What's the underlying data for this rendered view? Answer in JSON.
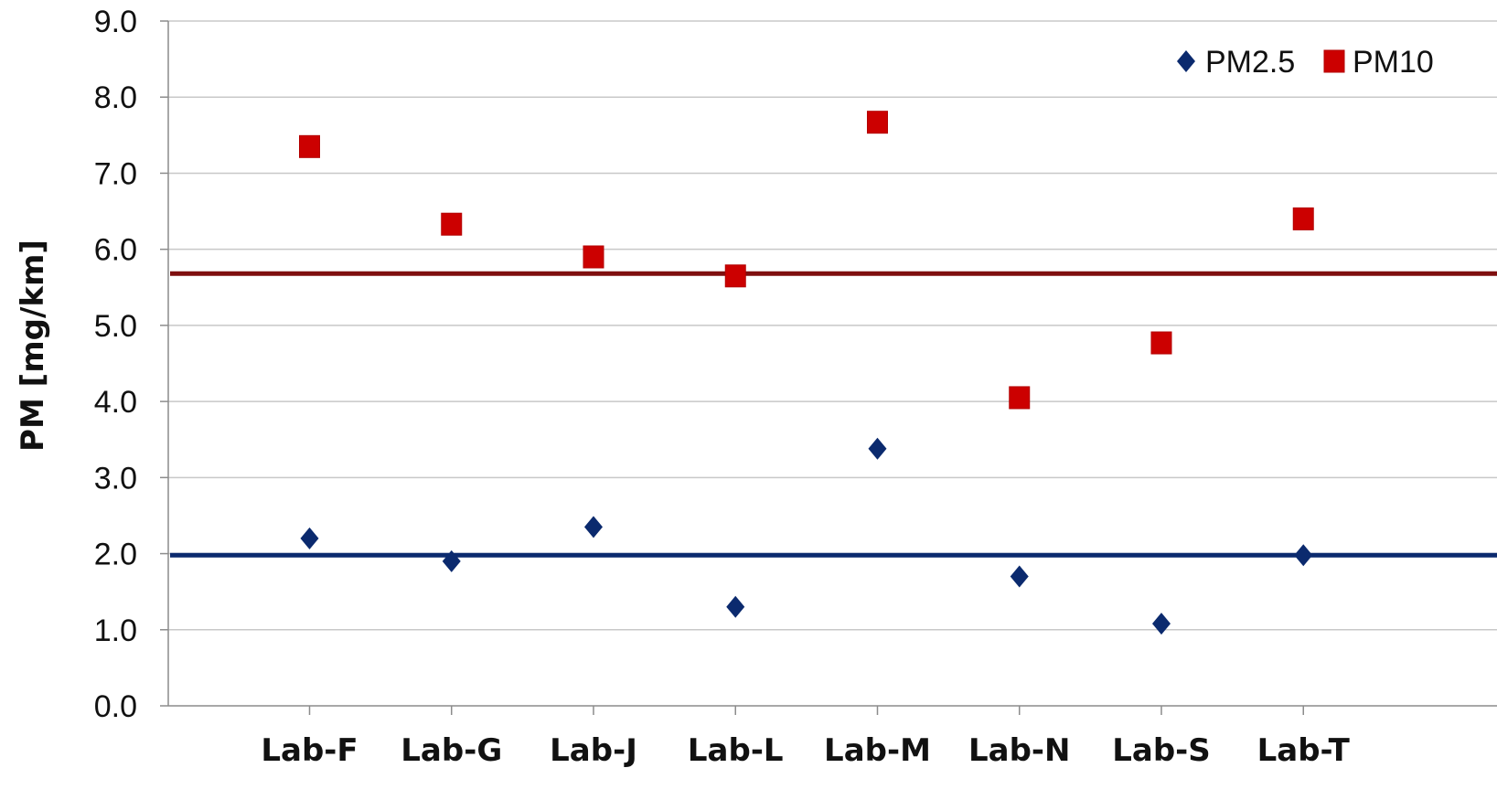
{
  "chart_data": {
    "type": "scatter",
    "categories": [
      "Lab-F",
      "Lab-G",
      "Lab-J",
      "Lab-L",
      "Lab-M",
      "Lab-N",
      "Lab-S",
      "Lab-T"
    ],
    "series": [
      {
        "name": "PM2.5",
        "marker": "diamond",
        "color": "#0b2a6e",
        "values": [
          2.2,
          1.9,
          2.35,
          1.3,
          3.38,
          1.7,
          1.08,
          1.98
        ]
      },
      {
        "name": "PM10",
        "marker": "square",
        "color": "#cc0000",
        "values": [
          7.35,
          6.33,
          5.9,
          5.65,
          7.67,
          4.05,
          4.77,
          6.4
        ]
      }
    ],
    "reference_lines": [
      {
        "series": "PM10",
        "value": 5.68,
        "color": "#7f0f0f"
      },
      {
        "series": "PM2.5",
        "value": 1.98,
        "color": "#0b2a6e"
      }
    ],
    "ylabel": "PM [mg/km]",
    "xlabel": "",
    "ylim": [
      0,
      9
    ],
    "yticks": [
      "0.0",
      "1.0",
      "2.0",
      "3.0",
      "4.0",
      "5.0",
      "6.0",
      "7.0",
      "8.0",
      "9.0"
    ],
    "grid": true,
    "legend_position": "top-right"
  }
}
